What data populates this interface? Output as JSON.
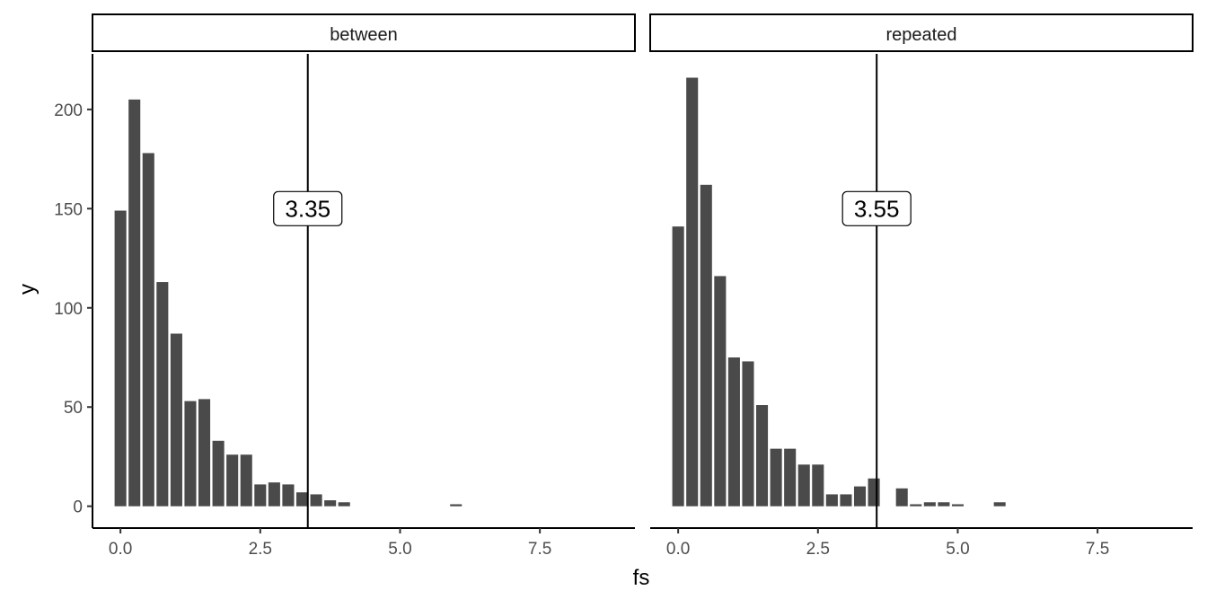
{
  "chart_data": {
    "type": "bar",
    "xlabel": "fs",
    "ylabel": "y",
    "xlim": [
      -0.5,
      9.2
    ],
    "ylim": [
      -11,
      228
    ],
    "x_ticks": [
      0.0,
      2.5,
      5.0,
      7.5
    ],
    "x_tick_labels": [
      "0.0",
      "2.5",
      "5.0",
      "7.5"
    ],
    "y_ticks": [
      0,
      50,
      100,
      150,
      200
    ],
    "y_tick_labels": [
      "0",
      "50",
      "100",
      "150",
      "200"
    ],
    "bin_width": 0.25,
    "grid": false,
    "bar_color": "#4a4a4a",
    "panels": [
      {
        "label": "between",
        "critical_value": 3.35,
        "critical_label": "3.35",
        "label_y": 150,
        "bins": [
          {
            "x": 0.0,
            "y": 149
          },
          {
            "x": 0.25,
            "y": 205
          },
          {
            "x": 0.5,
            "y": 178
          },
          {
            "x": 0.75,
            "y": 113
          },
          {
            "x": 1.0,
            "y": 87
          },
          {
            "x": 1.25,
            "y": 53
          },
          {
            "x": 1.5,
            "y": 54
          },
          {
            "x": 1.75,
            "y": 33
          },
          {
            "x": 2.0,
            "y": 26
          },
          {
            "x": 2.25,
            "y": 26
          },
          {
            "x": 2.5,
            "y": 11
          },
          {
            "x": 2.75,
            "y": 12
          },
          {
            "x": 3.0,
            "y": 11
          },
          {
            "x": 3.25,
            "y": 7
          },
          {
            "x": 3.5,
            "y": 6
          },
          {
            "x": 3.75,
            "y": 3
          },
          {
            "x": 4.0,
            "y": 2
          },
          {
            "x": 4.25,
            "y": 0
          },
          {
            "x": 4.5,
            "y": 0
          },
          {
            "x": 4.75,
            "y": 0
          },
          {
            "x": 5.0,
            "y": 0
          },
          {
            "x": 5.25,
            "y": 0
          },
          {
            "x": 5.5,
            "y": 0
          },
          {
            "x": 5.75,
            "y": 0
          },
          {
            "x": 6.0,
            "y": 1
          }
        ]
      },
      {
        "label": "repeated",
        "critical_value": 3.55,
        "critical_label": "3.55",
        "label_y": 150,
        "bins": [
          {
            "x": 0.0,
            "y": 141
          },
          {
            "x": 0.25,
            "y": 216
          },
          {
            "x": 0.5,
            "y": 162
          },
          {
            "x": 0.75,
            "y": 116
          },
          {
            "x": 1.0,
            "y": 75
          },
          {
            "x": 1.25,
            "y": 73
          },
          {
            "x": 1.5,
            "y": 51
          },
          {
            "x": 1.75,
            "y": 29
          },
          {
            "x": 2.0,
            "y": 29
          },
          {
            "x": 2.25,
            "y": 21
          },
          {
            "x": 2.5,
            "y": 21
          },
          {
            "x": 2.75,
            "y": 6
          },
          {
            "x": 3.0,
            "y": 6
          },
          {
            "x": 3.25,
            "y": 10
          },
          {
            "x": 3.5,
            "y": 14
          },
          {
            "x": 3.75,
            "y": 0
          },
          {
            "x": 4.0,
            "y": 9
          },
          {
            "x": 4.25,
            "y": 1
          },
          {
            "x": 4.5,
            "y": 2
          },
          {
            "x": 4.75,
            "y": 2
          },
          {
            "x": 5.0,
            "y": 1
          },
          {
            "x": 5.25,
            "y": 0
          },
          {
            "x": 5.5,
            "y": 0
          },
          {
            "x": 5.75,
            "y": 2
          }
        ]
      }
    ]
  }
}
